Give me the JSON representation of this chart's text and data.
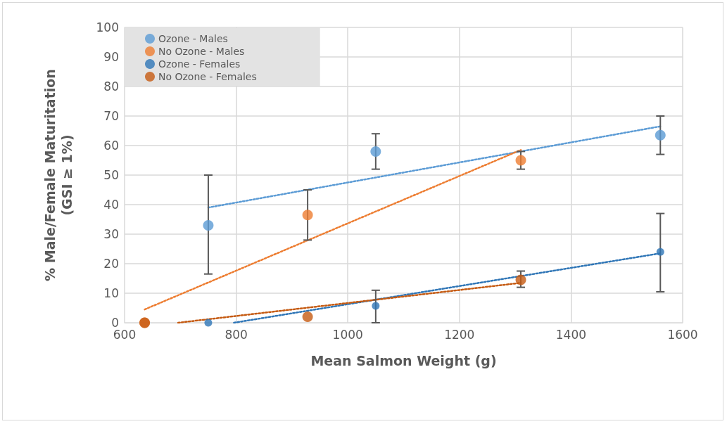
{
  "chart_data": {
    "type": "scatter",
    "xlabel": "Mean Salmon Weight (g)",
    "ylabel": "% Male/Female Maturitation\n(GSI ≥ 1%)",
    "xlim": [
      600,
      1600
    ],
    "xticks": [
      600,
      800,
      1000,
      1200,
      1400,
      1600
    ],
    "ylim": [
      0,
      100
    ],
    "yticks": [
      0,
      10,
      20,
      30,
      40,
      50,
      60,
      70,
      80,
      90,
      100
    ],
    "grid": true,
    "legend": "top left",
    "marker": "circle",
    "series": [
      {
        "name": "Ozone - Males",
        "color": "#5b9bd5",
        "x": [
          750,
          1050,
          1560
        ],
        "values": [
          33,
          58,
          63.5
        ],
        "errors": [
          [
            16.5,
            50
          ],
          [
            52,
            64
          ],
          [
            57,
            70
          ]
        ]
      },
      {
        "name": "No Ozone - Males",
        "color": "#ed7d31",
        "x": [
          636,
          928,
          1310
        ],
        "values": [
          0,
          36.5,
          55
        ],
        "errors": [
          null,
          [
            28,
            45
          ],
          [
            52,
            58
          ]
        ]
      },
      {
        "name": "Ozone - Females",
        "color": "#2e75b6",
        "x": [
          750,
          1050,
          1560
        ],
        "values": [
          0,
          5.7,
          24
        ],
        "errors": [
          null,
          [
            0,
            11
          ],
          [
            10.5,
            37
          ]
        ]
      },
      {
        "name": "No Ozone - Females",
        "color": "#c55a11",
        "x": [
          636,
          928,
          1310
        ],
        "values": [
          0,
          2,
          14.5
        ],
        "errors": [
          null,
          null,
          [
            12,
            17.5
          ]
        ]
      },
      {
        "type": "line",
        "color": "#5b9bd5",
        "line_style": "dotted",
        "marker": "none",
        "x": [
          750,
          1560
        ],
        "values": [
          39,
          66.5
        ]
      },
      {
        "type": "line",
        "color": "#ed7d31",
        "line_style": "dotted",
        "marker": "none",
        "x": [
          636,
          1310
        ],
        "values": [
          4.5,
          58.5
        ]
      },
      {
        "type": "line",
        "color": "#2e75b6",
        "line_style": "dotted",
        "marker": "none",
        "x": [
          796,
          1560
        ],
        "values": [
          0,
          23.5
        ]
      },
      {
        "type": "line",
        "color": "#c55a11",
        "line_style": "dotted",
        "marker": "none",
        "x": [
          696,
          1310
        ],
        "values": [
          0,
          13.5
        ]
      }
    ]
  }
}
